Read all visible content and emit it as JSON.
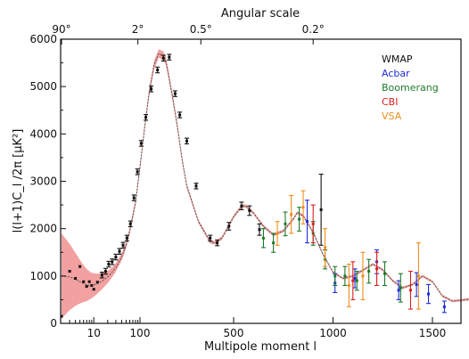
{
  "chart_data": {
    "type": "scatter",
    "top_axis_title": "Angular scale",
    "top_ticks": [
      {
        "label": "90°",
        "ell": 2
      },
      {
        "label": "2°",
        "ell": 90
      },
      {
        "label": "0.5°",
        "ell": 360
      },
      {
        "label": "0.2°",
        "ell": 900
      }
    ],
    "xlabel": "Multipole moment l",
    "ylabel": "l(l+1)C_l /2π [μK²]",
    "ylim": [
      0,
      6000
    ],
    "y_ticks": [
      0,
      1000,
      2000,
      3000,
      4000,
      5000,
      6000
    ],
    "x_ticks": [
      {
        "label": "10",
        "ell": 10
      },
      {
        "label": "100",
        "ell": 100
      },
      {
        "label": "500",
        "ell": 500
      },
      {
        "label": "1000",
        "ell": 1000
      },
      {
        "label": "1500",
        "ell": 1500
      }
    ],
    "x_scale": "log for l ≤ 100, linear for l ≥ 500",
    "theory_curve": {
      "color": "#555555",
      "band_color": "#f2a0a0",
      "x": [
        2,
        3,
        4,
        5,
        6,
        7,
        8,
        9,
        10,
        12,
        15,
        20,
        25,
        30,
        40,
        50,
        60,
        80,
        100,
        120,
        140,
        160,
        180,
        200,
        210,
        220,
        240,
        260,
        280,
        300,
        350,
        400,
        420,
        450,
        500,
        540,
        560,
        600,
        650,
        700,
        750,
        800,
        820,
        850,
        900,
        950,
        1000,
        1050,
        1100,
        1150,
        1200,
        1250,
        1300,
        1350,
        1400,
        1450,
        1500,
        1550,
        1600,
        1650,
        1700
      ],
      "y": [
        1000,
        980,
        930,
        880,
        840,
        810,
        800,
        800,
        810,
        840,
        890,
        980,
        1080,
        1180,
        1400,
        1650,
        1950,
        2550,
        3300,
        4150,
        4900,
        5450,
        5700,
        5650,
        5550,
        5300,
        4750,
        4150,
        3450,
        2900,
        2150,
        1720,
        1700,
        1800,
        2250,
        2470,
        2480,
        2330,
        2050,
        1870,
        1950,
        2200,
        2340,
        2270,
        1920,
        1450,
        1080,
        950,
        1000,
        1120,
        1250,
        1130,
        900,
        750,
        820,
        1000,
        880,
        580,
        470,
        490,
        520
      ],
      "band_half_width": [
        900,
        700,
        560,
        460,
        390,
        340,
        300,
        270,
        245,
        210,
        170,
        130,
        105,
        90,
        75,
        70,
        70,
        70,
        75,
        80,
        85,
        90,
        90,
        90,
        88,
        85,
        80,
        70,
        60,
        50,
        40,
        35,
        35,
        35,
        35,
        35,
        35,
        30,
        30,
        30,
        30,
        30,
        30,
        30,
        30,
        30,
        25,
        25,
        25,
        25,
        25,
        25,
        25,
        25,
        25,
        25,
        25,
        25,
        25,
        25,
        25
      ]
    },
    "series": [
      {
        "name": "WMAP",
        "color": "#111111",
        "points": [
          {
            "x": 2,
            "y": 150,
            "err": 0
          },
          {
            "x": 3,
            "y": 1100,
            "err": 0
          },
          {
            "x": 4,
            "y": 950,
            "err": 0
          },
          {
            "x": 5,
            "y": 1200,
            "err": 0
          },
          {
            "x": 6,
            "y": 880,
            "err": 0
          },
          {
            "x": 7,
            "y": 780,
            "err": 0
          },
          {
            "x": 8,
            "y": 880,
            "err": 0
          },
          {
            "x": 9,
            "y": 800,
            "err": 0
          },
          {
            "x": 10,
            "y": 720,
            "err": 0
          },
          {
            "x": 12,
            "y": 870,
            "err": 0
          },
          {
            "x": 15,
            "y": 1020,
            "err": 60
          },
          {
            "x": 18,
            "y": 1100,
            "err": 60
          },
          {
            "x": 21,
            "y": 1250,
            "err": 60
          },
          {
            "x": 25,
            "y": 1300,
            "err": 60
          },
          {
            "x": 30,
            "y": 1400,
            "err": 60
          },
          {
            "x": 36,
            "y": 1520,
            "err": 60
          },
          {
            "x": 43,
            "y": 1650,
            "err": 60
          },
          {
            "x": 52,
            "y": 1800,
            "err": 60
          },
          {
            "x": 62,
            "y": 2100,
            "err": 60
          },
          {
            "x": 74,
            "y": 2650,
            "err": 60
          },
          {
            "x": 88,
            "y": 3200,
            "err": 60
          },
          {
            "x": 105,
            "y": 3800,
            "err": 60
          },
          {
            "x": 125,
            "y": 4350,
            "err": 60
          },
          {
            "x": 148,
            "y": 4950,
            "err": 60
          },
          {
            "x": 175,
            "y": 5350,
            "err": 60
          },
          {
            "x": 200,
            "y": 5600,
            "err": 60
          },
          {
            "x": 225,
            "y": 5620,
            "err": 60
          },
          {
            "x": 250,
            "y": 4850,
            "err": 60
          },
          {
            "x": 270,
            "y": 4400,
            "err": 60
          },
          {
            "x": 300,
            "y": 3850,
            "err": 60
          },
          {
            "x": 340,
            "y": 2900,
            "err": 60
          },
          {
            "x": 400,
            "y": 1800,
            "err": 60
          },
          {
            "x": 430,
            "y": 1700,
            "err": 60
          },
          {
            "x": 480,
            "y": 2050,
            "err": 80
          },
          {
            "x": 540,
            "y": 2480,
            "err": 80
          },
          {
            "x": 580,
            "y": 2380,
            "err": 100
          },
          {
            "x": 630,
            "y": 1980,
            "err": 120
          },
          {
            "x": 940,
            "y": 2400,
            "err": 750
          }
        ]
      },
      {
        "name": "Acbar",
        "color": "#1f2bd8",
        "points": [
          {
            "x": 870,
            "y": 2150,
            "err": 450
          },
          {
            "x": 1010,
            "y": 850,
            "err": 200
          },
          {
            "x": 1110,
            "y": 950,
            "err": 200
          },
          {
            "x": 1220,
            "y": 1300,
            "err": 250
          },
          {
            "x": 1330,
            "y": 700,
            "err": 200
          },
          {
            "x": 1420,
            "y": 820,
            "err": 250
          },
          {
            "x": 1480,
            "y": 620,
            "err": 200
          },
          {
            "x": 1560,
            "y": 350,
            "err": 120
          }
        ]
      },
      {
        "name": "Boomerang",
        "color": "#1c7a2a",
        "points": [
          {
            "x": 650,
            "y": 1800,
            "err": 200
          },
          {
            "x": 700,
            "y": 1700,
            "err": 200
          },
          {
            "x": 760,
            "y": 2100,
            "err": 250
          },
          {
            "x": 830,
            "y": 2200,
            "err": 250
          },
          {
            "x": 900,
            "y": 1900,
            "err": 250
          },
          {
            "x": 960,
            "y": 1350,
            "err": 200
          },
          {
            "x": 1010,
            "y": 1000,
            "err": 200
          },
          {
            "x": 1060,
            "y": 1000,
            "err": 200
          },
          {
            "x": 1120,
            "y": 900,
            "err": 200
          },
          {
            "x": 1180,
            "y": 1100,
            "err": 250
          },
          {
            "x": 1260,
            "y": 1050,
            "err": 250
          },
          {
            "x": 1340,
            "y": 750,
            "err": 300
          }
        ]
      },
      {
        "name": "CBI",
        "color": "#dd1f1f",
        "points": [
          {
            "x": 900,
            "y": 2100,
            "err": 400
          },
          {
            "x": 1100,
            "y": 900,
            "err": 400
          },
          {
            "x": 1220,
            "y": 1150,
            "err": 350
          },
          {
            "x": 1390,
            "y": 700,
            "err": 400
          }
        ]
      },
      {
        "name": "VSA",
        "color": "#f08c1c",
        "points": [
          {
            "x": 720,
            "y": 1900,
            "err": 250
          },
          {
            "x": 790,
            "y": 2300,
            "err": 400
          },
          {
            "x": 850,
            "y": 2450,
            "err": 350
          },
          {
            "x": 960,
            "y": 1600,
            "err": 400
          },
          {
            "x": 1080,
            "y": 800,
            "err": 450
          },
          {
            "x": 1150,
            "y": 1000,
            "err": 500
          },
          {
            "x": 1430,
            "y": 1000,
            "err": 700
          }
        ]
      }
    ],
    "legend_position": "top-right"
  }
}
